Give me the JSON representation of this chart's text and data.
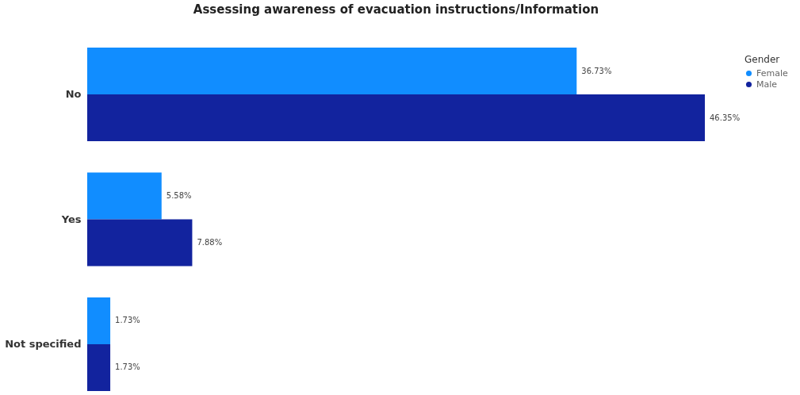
{
  "chart_data": {
    "type": "bar",
    "orientation": "horizontal",
    "title": "Assessing awareness of evacuation instructions/Information",
    "categories": [
      "No",
      "Yes",
      "Not specified"
    ],
    "series": [
      {
        "name": "Female",
        "color": "#118dff",
        "values": [
          36.73,
          5.58,
          1.73
        ],
        "value_labels": [
          "36.73%",
          "5.58%",
          "1.73%"
        ]
      },
      {
        "name": "Male",
        "color": "#12239e",
        "values": [
          46.35,
          7.88,
          1.73
        ],
        "value_labels": [
          "46.35%",
          "7.88%",
          "1.73%"
        ]
      }
    ],
    "legend_title": "Gender",
    "legend": "right",
    "grid": false
  }
}
